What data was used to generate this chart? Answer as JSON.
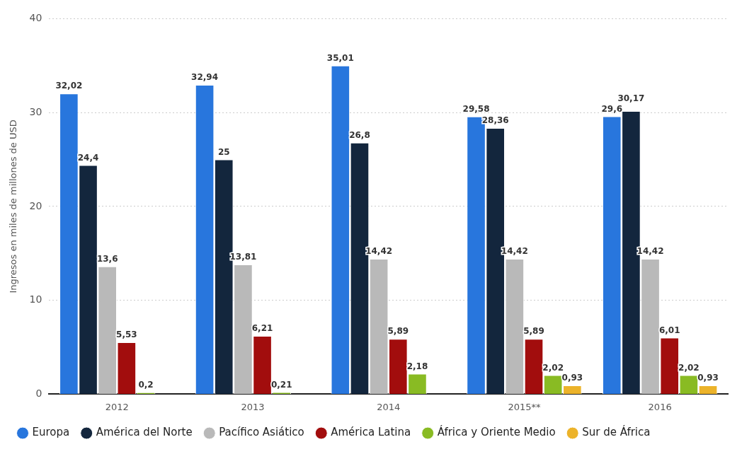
{
  "chart_data": {
    "type": "bar",
    "ylabel": "Ingresos en miles de millones de USD",
    "categories": [
      "2012",
      "2013",
      "2014",
      "2015**",
      "2016"
    ],
    "series": [
      {
        "name": "Europa",
        "color": "#2876dd",
        "values": [
          32.02,
          32.94,
          35.01,
          29.58,
          29.6
        ],
        "value_labels": [
          "32,02",
          "32,94",
          "35,01",
          "29,58",
          "29,6"
        ]
      },
      {
        "name": "América del Norte",
        "color": "#13263d",
        "values": [
          24.4,
          25,
          26.8,
          28.36,
          30.17
        ],
        "value_labels": [
          "24,4",
          "25",
          "26,8",
          "28,36",
          "30,17"
        ]
      },
      {
        "name": "Pacífico Asiático",
        "color": "#b9b9b9",
        "values": [
          13.6,
          13.81,
          14.42,
          14.42,
          14.42
        ],
        "value_labels": [
          "13,6",
          "13,81",
          "14,42",
          "14,42",
          "14,42"
        ]
      },
      {
        "name": "América Latina",
        "color": "#a20d0d",
        "values": [
          5.53,
          6.21,
          5.89,
          5.89,
          6.01
        ],
        "value_labels": [
          "5,53",
          "6,21",
          "5,89",
          "5,89",
          "6,01"
        ]
      },
      {
        "name": "África y Oriente Medio",
        "color": "#89bb23",
        "values": [
          0.2,
          0.21,
          2.18,
          2.02,
          2.02
        ],
        "value_labels": [
          "0,2",
          "0,21",
          "2,18",
          "2,02",
          "2,02"
        ]
      },
      {
        "name": "Sur de África",
        "color": "#ecb32a",
        "values": [
          null,
          null,
          null,
          0.93,
          0.93
        ],
        "value_labels": [
          null,
          null,
          null,
          "0,93",
          "0,93"
        ]
      }
    ],
    "ylim": [
      0,
      40
    ],
    "yticks": [
      0,
      10,
      20,
      30,
      40
    ],
    "grid": "y",
    "legend": "bottom"
  }
}
